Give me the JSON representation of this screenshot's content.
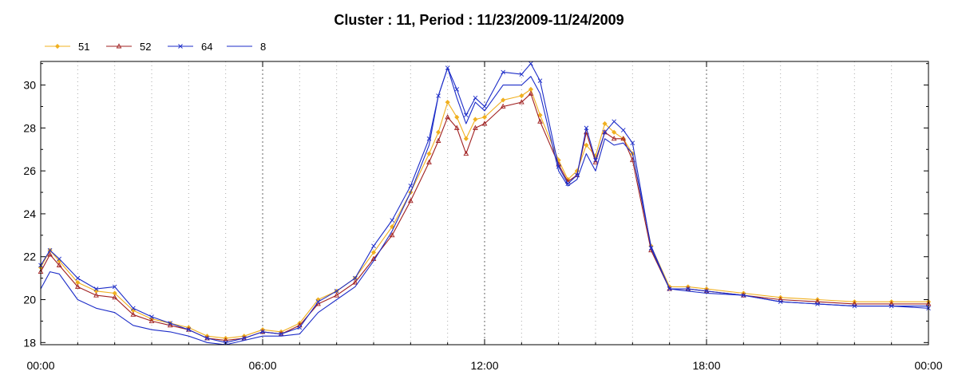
{
  "chart_data": {
    "type": "line",
    "title": "Cluster : 11, Period : 11/23/2009-11/24/2009",
    "xlabel": "",
    "ylabel": "",
    "x_tick_labels": [
      "00:00",
      "06:00",
      "12:00",
      "18:00",
      "00:00"
    ],
    "x_tick_hours": [
      0,
      6,
      12,
      18,
      24
    ],
    "y_ticks": [
      18,
      20,
      22,
      24,
      26,
      28,
      30
    ],
    "xlim_hours": [
      0,
      24
    ],
    "ylim": [
      17.9,
      31.1
    ],
    "grid": "dotted vertical lines every hour",
    "legend_position": "top-left",
    "x_hours": [
      0,
      0.25,
      0.5,
      1,
      1.5,
      2,
      2.5,
      3,
      3.5,
      4,
      4.5,
      5,
      5.5,
      6,
      6.5,
      7,
      7.5,
      8,
      8.5,
      9,
      9.5,
      10,
      10.5,
      10.75,
      11,
      11.25,
      11.5,
      11.75,
      12,
      12.5,
      13,
      13.25,
      13.5,
      14,
      14.25,
      14.5,
      14.75,
      15,
      15.25,
      15.5,
      15.75,
      16,
      16.5,
      17,
      17.5,
      18,
      19,
      20,
      21,
      22,
      23,
      24
    ],
    "series": [
      {
        "name": "51",
        "color": "#f0b020",
        "marker": "diamond",
        "values": [
          21.5,
          22.3,
          21.8,
          20.8,
          20.4,
          20.3,
          19.5,
          19.1,
          18.9,
          18.7,
          18.3,
          18.2,
          18.3,
          18.6,
          18.5,
          18.9,
          20.0,
          20.4,
          21.0,
          22.2,
          23.4,
          25.0,
          26.8,
          27.8,
          29.2,
          28.5,
          27.5,
          28.4,
          28.5,
          29.3,
          29.5,
          29.8,
          28.6,
          26.5,
          25.6,
          26.0,
          27.2,
          26.7,
          28.2,
          27.8,
          27.5,
          26.8,
          22.5,
          20.6,
          20.6,
          20.5,
          20.3,
          20.1,
          20.0,
          19.9,
          19.9,
          19.9
        ]
      },
      {
        "name": "52",
        "color": "#a02020",
        "marker": "triangle",
        "values": [
          21.3,
          22.1,
          21.6,
          20.6,
          20.2,
          20.1,
          19.3,
          19.0,
          18.8,
          18.6,
          18.2,
          18.1,
          18.2,
          18.5,
          18.4,
          18.8,
          19.8,
          20.2,
          20.8,
          21.9,
          23.0,
          24.6,
          26.4,
          27.4,
          28.5,
          28.0,
          26.8,
          28.0,
          28.2,
          29.0,
          29.2,
          29.6,
          28.3,
          26.3,
          25.5,
          25.8,
          27.8,
          26.4,
          27.8,
          27.5,
          27.5,
          26.5,
          22.3,
          20.5,
          20.5,
          20.4,
          20.2,
          20.0,
          19.9,
          19.8,
          19.8,
          19.8
        ]
      },
      {
        "name": "64",
        "color": "#1c2cc8",
        "marker": "x",
        "values": [
          21.6,
          22.3,
          21.9,
          21.0,
          20.5,
          20.6,
          19.6,
          19.2,
          18.9,
          18.6,
          18.2,
          18.0,
          18.2,
          18.5,
          18.4,
          18.7,
          19.9,
          20.4,
          21.0,
          22.5,
          23.7,
          25.3,
          27.5,
          29.5,
          30.8,
          29.8,
          28.6,
          29.4,
          29.0,
          30.6,
          30.5,
          31.0,
          30.2,
          26.2,
          25.4,
          25.8,
          28.0,
          26.5,
          27.8,
          28.3,
          27.9,
          27.3,
          22.4,
          20.5,
          20.5,
          20.4,
          20.2,
          19.9,
          19.8,
          19.7,
          19.7,
          19.6
        ]
      },
      {
        "name": "8",
        "color": "#1c2cc8",
        "marker": "none",
        "values": [
          20.5,
          21.3,
          21.2,
          20.0,
          19.6,
          19.4,
          18.8,
          18.6,
          18.5,
          18.3,
          18.0,
          17.9,
          18.1,
          18.3,
          18.3,
          18.4,
          19.4,
          20.0,
          20.6,
          21.8,
          23.2,
          25.0,
          27.2,
          29.5,
          30.8,
          29.4,
          28.2,
          29.2,
          28.8,
          30.0,
          30.0,
          30.4,
          29.6,
          26.0,
          25.3,
          25.6,
          26.8,
          26.0,
          27.5,
          27.2,
          27.3,
          26.8,
          22.5,
          20.5,
          20.4,
          20.3,
          20.2,
          19.9,
          19.8,
          19.7,
          19.7,
          19.7
        ]
      }
    ]
  }
}
